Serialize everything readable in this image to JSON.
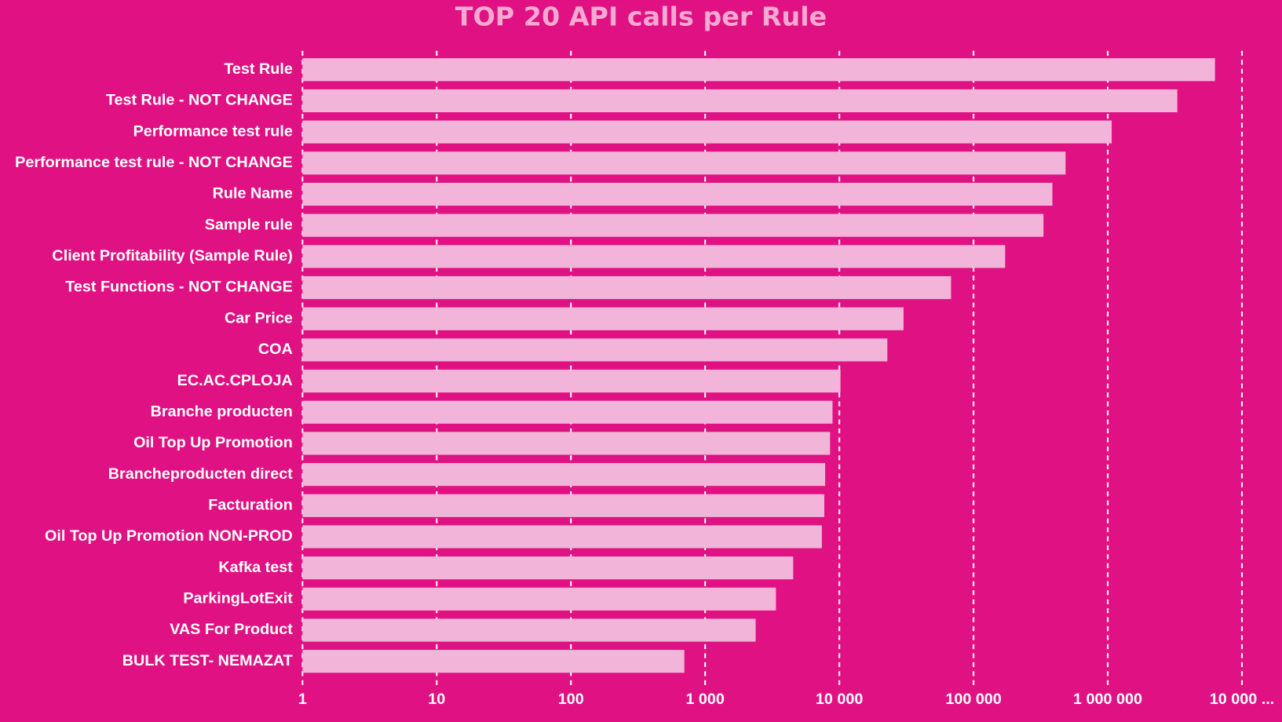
{
  "chart_data": {
    "type": "bar",
    "orientation": "horizontal",
    "title": "TOP 20 API calls per Rule",
    "categories": [
      "Test Rule",
      "Test Rule - NOT CHANGE",
      "Performance test rule",
      "Performance test rule - NOT CHANGE",
      "Rule Name",
      "Sample rule",
      "Client Profitability (Sample Rule)",
      "Test Functions - NOT CHANGE",
      "Car Price",
      "COA",
      "EC.AC.CPLOJA",
      "Branche producten",
      "Oil Top Up Promotion",
      "Brancheproducten direct",
      "Facturation",
      "Oil Top Up Promotion NON-PROD",
      "Kafka test",
      "ParkingLotExit",
      "VAS For Product",
      "BULK TEST- NEMAZAT"
    ],
    "values": [
      6300000,
      3300000,
      1070000,
      485000,
      387000,
      332000,
      172000,
      68000,
      30100,
      22800,
      10200,
      8900,
      8530,
      7840,
      7730,
      7410,
      4530,
      3370,
      2380,
      700
    ],
    "color": "#f2b5d9",
    "log_scale": true,
    "xlim": [
      1,
      10000000
    ],
    "xticks": [
      1,
      10,
      100,
      {
        "value": 1000,
        "label": "1 000"
      },
      {
        "value": 10000,
        "label": "10 000"
      },
      {
        "value": 100000,
        "label": "100 000"
      },
      {
        "value": 1000000,
        "label": "1 000 000"
      },
      {
        "value": 10000000,
        "label": "10 000 ..."
      }
    ],
    "grid": true
  }
}
